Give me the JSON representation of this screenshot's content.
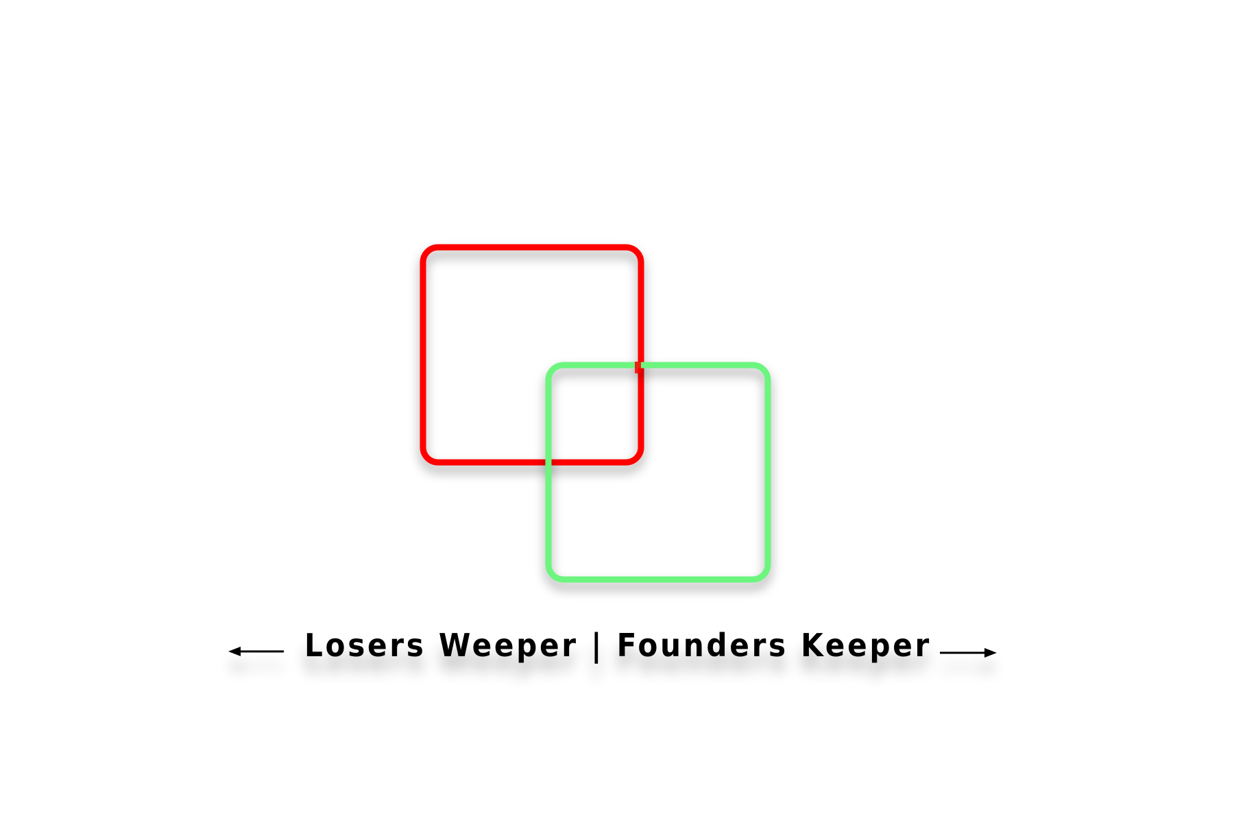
{
  "caption": {
    "text": "Losers Weeper | Founders Keeper",
    "left_arrow_icon": "arrow-left-icon",
    "right_arrow_icon": "arrow-right-icon"
  },
  "shapes": {
    "red_square": {
      "name": "red-rounded-square-outline",
      "color": "#ff0000"
    },
    "green_square": {
      "name": "green-rounded-square-outline",
      "color": "#6cf57f"
    }
  },
  "colors": {
    "background": "#ffffff",
    "text": "#000000",
    "arrow": "#000000"
  }
}
